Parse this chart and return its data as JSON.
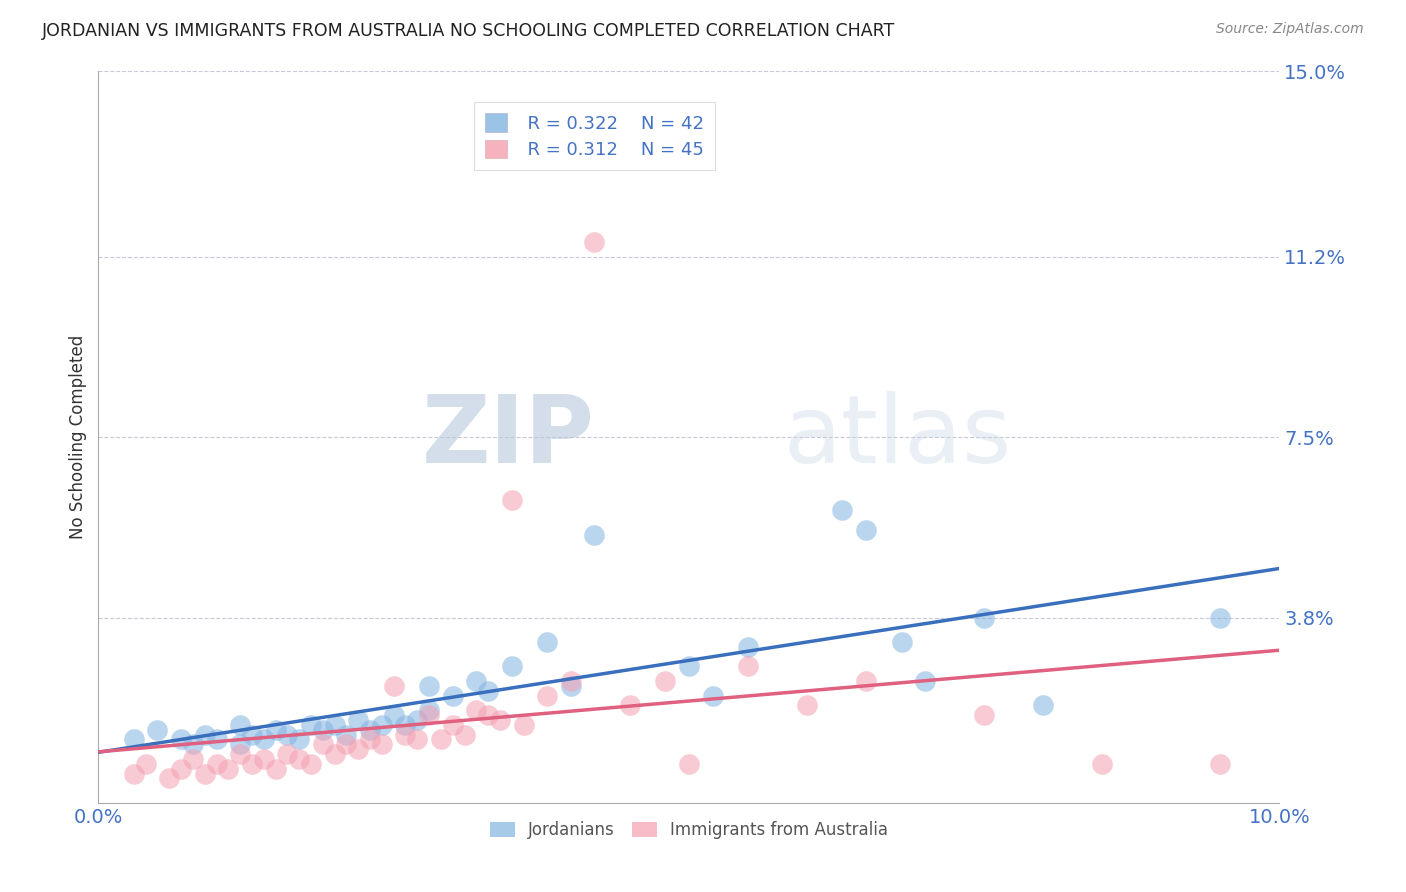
{
  "title": "JORDANIAN VS IMMIGRANTS FROM AUSTRALIA NO SCHOOLING COMPLETED CORRELATION CHART",
  "source": "Source: ZipAtlas.com",
  "ylabel": "No Schooling Completed",
  "xlim": [
    0.0,
    0.1
  ],
  "ylim": [
    0.0,
    0.15
  ],
  "yticks": [
    0.038,
    0.075,
    0.112,
    0.15
  ],
  "ytick_labels": [
    "3.8%",
    "7.5%",
    "11.2%",
    "15.0%"
  ],
  "xticks": [
    0.0,
    0.1
  ],
  "xtick_labels": [
    "0.0%",
    "10.0%"
  ],
  "blue_color": "#82b4e0",
  "pink_color": "#f4a0b0",
  "blue_line_color": "#3a6fbd",
  "pink_line_color": "#e06080",
  "legend_R1": "R = 0.322",
  "legend_N1": "N = 42",
  "legend_R2": "R = 0.312",
  "legend_N2": "N = 45",
  "watermark_zip": "ZIP",
  "watermark_atlas": "atlas",
  "blue_scatter_x": [
    0.003,
    0.005,
    0.007,
    0.008,
    0.009,
    0.01,
    0.012,
    0.012,
    0.013,
    0.014,
    0.015,
    0.016,
    0.017,
    0.018,
    0.019,
    0.02,
    0.021,
    0.022,
    0.023,
    0.024,
    0.025,
    0.026,
    0.027,
    0.028,
    0.028,
    0.03,
    0.032,
    0.033,
    0.035,
    0.038,
    0.04,
    0.042,
    0.05,
    0.052,
    0.055,
    0.063,
    0.065,
    0.068,
    0.07,
    0.075,
    0.08,
    0.095
  ],
  "blue_scatter_y": [
    0.013,
    0.015,
    0.013,
    0.012,
    0.014,
    0.013,
    0.012,
    0.016,
    0.014,
    0.013,
    0.015,
    0.014,
    0.013,
    0.016,
    0.015,
    0.016,
    0.014,
    0.017,
    0.015,
    0.016,
    0.018,
    0.016,
    0.017,
    0.019,
    0.024,
    0.022,
    0.025,
    0.023,
    0.028,
    0.033,
    0.024,
    0.055,
    0.028,
    0.022,
    0.032,
    0.06,
    0.056,
    0.033,
    0.025,
    0.038,
    0.02,
    0.038
  ],
  "pink_scatter_x": [
    0.003,
    0.004,
    0.006,
    0.007,
    0.008,
    0.009,
    0.01,
    0.011,
    0.012,
    0.013,
    0.014,
    0.015,
    0.016,
    0.017,
    0.018,
    0.019,
    0.02,
    0.021,
    0.022,
    0.023,
    0.024,
    0.025,
    0.026,
    0.027,
    0.028,
    0.029,
    0.03,
    0.031,
    0.032,
    0.033,
    0.034,
    0.035,
    0.036,
    0.038,
    0.04,
    0.042,
    0.045,
    0.048,
    0.05,
    0.055,
    0.06,
    0.065,
    0.075,
    0.085,
    0.095
  ],
  "pink_scatter_y": [
    0.006,
    0.008,
    0.005,
    0.007,
    0.009,
    0.006,
    0.008,
    0.007,
    0.01,
    0.008,
    0.009,
    0.007,
    0.01,
    0.009,
    0.008,
    0.012,
    0.01,
    0.012,
    0.011,
    0.013,
    0.012,
    0.024,
    0.014,
    0.013,
    0.018,
    0.013,
    0.016,
    0.014,
    0.019,
    0.018,
    0.017,
    0.062,
    0.016,
    0.022,
    0.025,
    0.115,
    0.02,
    0.025,
    0.008,
    0.028,
    0.02,
    0.025,
    0.018,
    0.008,
    0.008
  ]
}
